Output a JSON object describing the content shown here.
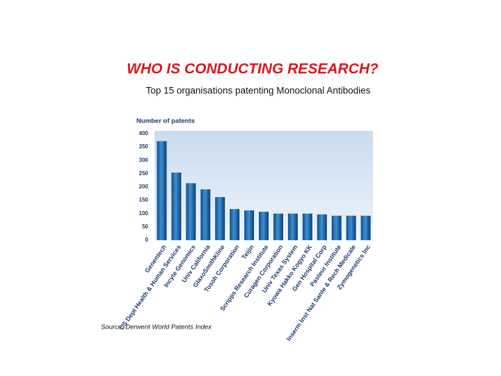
{
  "chart_data": {
    "type": "bar",
    "title": "WHO IS CONDUCTING RESEARCH?",
    "subtitle": "Top 15 organisations patenting Monoclonal Antibodies",
    "y_label": "Number of patents",
    "source": "Source: Derwent World Patents Index",
    "categories": [
      "Genentech",
      "US Dept Health & Human Services",
      "Incyte Genomics",
      "Univ California",
      "GlaxoSmithKline",
      "Tosoh Corporation",
      "Teijin",
      "Scripps Research Institute",
      "Curagen Corporation",
      "Univ Texas System",
      "Kyowa Hakko Kogyo KK",
      "Gen Hospital Corp",
      "Pasteur Institute",
      "Inserm Inst Nat Sante & Rech Medicale",
      "Zymogenetics Inc"
    ],
    "values": [
      372,
      254,
      214,
      191,
      162,
      117,
      112,
      107,
      100,
      100,
      100,
      97,
      92,
      92,
      92
    ],
    "color": "#1f6fb5",
    "ylim": [
      0,
      400
    ],
    "yticks": [
      0,
      50,
      100,
      150,
      200,
      250,
      300,
      350,
      400
    ],
    "grid": false
  }
}
